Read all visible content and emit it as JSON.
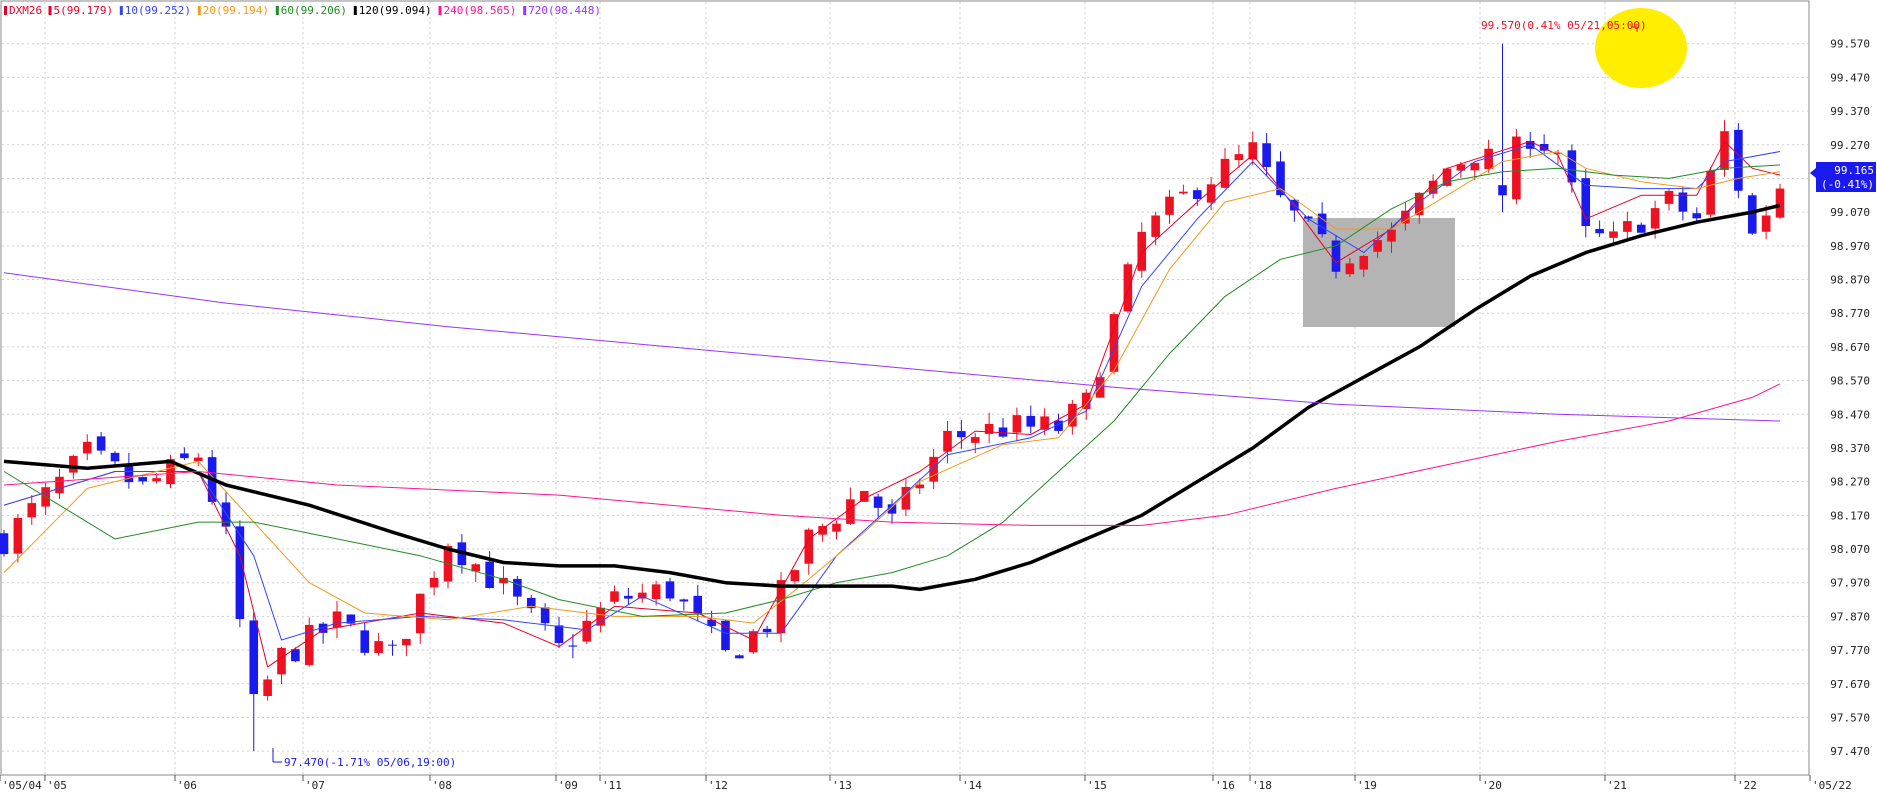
{
  "legend": [
    {
      "label": "DXM26",
      "color": "#e8002a"
    },
    {
      "label": "5(99.179)",
      "color": "#e8002a"
    },
    {
      "label": "10(99.252)",
      "color": "#3344ff"
    },
    {
      "label": "20(99.194)",
      "color": "#f29a1e"
    },
    {
      "label": "60(99.206)",
      "color": "#228b22"
    },
    {
      "label": "120(99.094)",
      "color": "#000000"
    },
    {
      "label": "240(98.565)",
      "color": "#ff1493"
    },
    {
      "label": "720(98.448)",
      "color": "#9933ff"
    }
  ],
  "annotations": {
    "high": "99.570(0.41% 05/21,05:00)",
    "low": "97.470(-1.71% 05/06,19:00)",
    "last_price": "99.165",
    "last_change": "(-0.41%)"
  },
  "colors": {
    "up": "#ee1122",
    "down": "#1a1aee",
    "grid": "#cfcfcf",
    "highlight_circle": "#ffee00",
    "highlight_box": "#b4b4b4",
    "price_tag": "#1a1aee"
  },
  "chart_data": {
    "type": "candlestick",
    "ylim": [
      97.42,
      99.67
    ],
    "yticks": [
      "99.570",
      "99.470",
      "99.370",
      "99.270",
      "99.170",
      "99.070",
      "98.970",
      "98.870",
      "98.770",
      "98.670",
      "98.570",
      "98.470",
      "98.370",
      "98.270",
      "98.170",
      "98.070",
      "97.970",
      "97.870",
      "97.770",
      "97.670",
      "97.570",
      "97.470"
    ],
    "xticks": [
      "05/04",
      "05",
      "06",
      "07",
      "08",
      "09",
      "11",
      "12",
      "13",
      "14",
      "15",
      "16",
      "18",
      "19",
      "20",
      "21",
      "22",
      "05/22"
    ],
    "price_path": [
      [
        0,
        98.1
      ],
      [
        6,
        98.35
      ],
      [
        10,
        98.25
      ],
      [
        14,
        98.35
      ],
      [
        16,
        98.1
      ],
      [
        18,
        97.6
      ],
      [
        20,
        97.75
      ],
      [
        24,
        97.85
      ],
      [
        28,
        97.75
      ],
      [
        32,
        98.1
      ],
      [
        36,
        97.95
      ],
      [
        40,
        97.77
      ],
      [
        44,
        97.92
      ],
      [
        48,
        97.95
      ],
      [
        52,
        97.75
      ],
      [
        55,
        97.85
      ],
      [
        58,
        98.1
      ],
      [
        62,
        98.25
      ],
      [
        64,
        98.15
      ],
      [
        68,
        98.4
      ],
      [
        72,
        98.43
      ],
      [
        76,
        98.43
      ],
      [
        78,
        98.5
      ],
      [
        82,
        99.0
      ],
      [
        86,
        99.15
      ],
      [
        88,
        99.2
      ],
      [
        90,
        99.25
      ],
      [
        92,
        99.1
      ],
      [
        96,
        98.92
      ],
      [
        98,
        98.98
      ],
      [
        100,
        99.0
      ],
      [
        104,
        99.2
      ],
      [
        106,
        99.25
      ],
      [
        108,
        99.2
      ],
      [
        110,
        99.3
      ],
      [
        112,
        99.25
      ],
      [
        114,
        99.0
      ],
      [
        116,
        98.98
      ],
      [
        118,
        99.05
      ],
      [
        120,
        99.1
      ],
      [
        122,
        99.05
      ],
      [
        124,
        99.3
      ],
      [
        126,
        99.0
      ],
      [
        128,
        99.15
      ]
    ],
    "moving_averages": [
      {
        "name": "5",
        "color": "#e8002a",
        "width": 1,
        "points": [
          [
            0,
            98.2
          ],
          [
            8,
            98.3
          ],
          [
            14,
            98.3
          ],
          [
            17,
            98.05
          ],
          [
            19,
            97.72
          ],
          [
            23,
            97.83
          ],
          [
            30,
            97.88
          ],
          [
            36,
            97.85
          ],
          [
            40,
            97.78
          ],
          [
            44,
            97.9
          ],
          [
            50,
            97.88
          ],
          [
            54,
            97.8
          ],
          [
            58,
            98.1
          ],
          [
            62,
            98.22
          ],
          [
            66,
            98.3
          ],
          [
            70,
            98.42
          ],
          [
            74,
            98.41
          ],
          [
            78,
            98.5
          ],
          [
            82,
            98.95
          ],
          [
            86,
            99.1
          ],
          [
            90,
            99.24
          ],
          [
            92,
            99.14
          ],
          [
            96,
            98.92
          ],
          [
            100,
            99.02
          ],
          [
            104,
            99.2
          ],
          [
            110,
            99.28
          ],
          [
            112,
            99.24
          ],
          [
            114,
            99.05
          ],
          [
            118,
            99.12
          ],
          [
            122,
            99.12
          ],
          [
            124,
            99.28
          ],
          [
            126,
            99.2
          ],
          [
            128,
            99.18
          ]
        ]
      },
      {
        "name": "10",
        "color": "#3344ff",
        "width": 1,
        "points": [
          [
            0,
            98.2
          ],
          [
            8,
            98.3
          ],
          [
            14,
            98.3
          ],
          [
            18,
            98.05
          ],
          [
            20,
            97.8
          ],
          [
            24,
            97.85
          ],
          [
            30,
            97.87
          ],
          [
            36,
            97.86
          ],
          [
            42,
            97.83
          ],
          [
            46,
            97.93
          ],
          [
            52,
            97.82
          ],
          [
            56,
            97.82
          ],
          [
            60,
            98.05
          ],
          [
            64,
            98.2
          ],
          [
            68,
            98.35
          ],
          [
            74,
            98.4
          ],
          [
            78,
            98.48
          ],
          [
            82,
            98.85
          ],
          [
            86,
            99.05
          ],
          [
            90,
            99.22
          ],
          [
            94,
            99.05
          ],
          [
            98,
            98.95
          ],
          [
            102,
            99.1
          ],
          [
            106,
            99.22
          ],
          [
            110,
            99.27
          ],
          [
            114,
            99.15
          ],
          [
            118,
            99.14
          ],
          [
            122,
            99.14
          ],
          [
            124,
            99.22
          ],
          [
            128,
            99.25
          ]
        ]
      },
      {
        "name": "20",
        "color": "#f29a1e",
        "width": 1,
        "points": [
          [
            0,
            98.0
          ],
          [
            6,
            98.25
          ],
          [
            14,
            98.33
          ],
          [
            18,
            98.15
          ],
          [
            22,
            97.97
          ],
          [
            26,
            97.88
          ],
          [
            32,
            97.86
          ],
          [
            38,
            97.9
          ],
          [
            44,
            97.87
          ],
          [
            50,
            97.87
          ],
          [
            54,
            97.85
          ],
          [
            58,
            97.98
          ],
          [
            62,
            98.12
          ],
          [
            66,
            98.27
          ],
          [
            72,
            98.38
          ],
          [
            76,
            98.4
          ],
          [
            80,
            98.6
          ],
          [
            84,
            98.9
          ],
          [
            88,
            99.1
          ],
          [
            92,
            99.14
          ],
          [
            96,
            99.02
          ],
          [
            100,
            99.02
          ],
          [
            104,
            99.12
          ],
          [
            108,
            99.22
          ],
          [
            112,
            99.25
          ],
          [
            114,
            99.2
          ],
          [
            118,
            99.16
          ],
          [
            122,
            99.14
          ],
          [
            125,
            99.17
          ],
          [
            128,
            99.19
          ]
        ]
      },
      {
        "name": "60",
        "color": "#228b22",
        "width": 1,
        "points": [
          [
            0,
            98.3
          ],
          [
            4,
            98.2
          ],
          [
            8,
            98.1
          ],
          [
            14,
            98.15
          ],
          [
            18,
            98.15
          ],
          [
            24,
            98.1
          ],
          [
            30,
            98.05
          ],
          [
            36,
            97.98
          ],
          [
            40,
            97.92
          ],
          [
            46,
            97.87
          ],
          [
            52,
            97.88
          ],
          [
            56,
            97.92
          ],
          [
            60,
            97.97
          ],
          [
            64,
            98.0
          ],
          [
            68,
            98.05
          ],
          [
            72,
            98.15
          ],
          [
            76,
            98.3
          ],
          [
            80,
            98.45
          ],
          [
            84,
            98.65
          ],
          [
            88,
            98.82
          ],
          [
            92,
            98.93
          ],
          [
            96,
            98.97
          ],
          [
            100,
            99.08
          ],
          [
            104,
            99.16
          ],
          [
            108,
            99.19
          ],
          [
            112,
            99.2
          ],
          [
            116,
            99.18
          ],
          [
            120,
            99.17
          ],
          [
            124,
            99.2
          ],
          [
            128,
            99.21
          ]
        ]
      },
      {
        "name": "120",
        "color": "#000000",
        "width": 3.5,
        "points": [
          [
            0,
            98.33
          ],
          [
            6,
            98.31
          ],
          [
            12,
            98.33
          ],
          [
            16,
            98.26
          ],
          [
            22,
            98.2
          ],
          [
            28,
            98.12
          ],
          [
            32,
            98.07
          ],
          [
            36,
            98.03
          ],
          [
            40,
            98.02
          ],
          [
            44,
            98.02
          ],
          [
            48,
            98.0
          ],
          [
            52,
            97.97
          ],
          [
            56,
            97.96
          ],
          [
            60,
            97.96
          ],
          [
            64,
            97.96
          ],
          [
            66,
            97.95
          ],
          [
            70,
            97.98
          ],
          [
            74,
            98.03
          ],
          [
            78,
            98.1
          ],
          [
            82,
            98.17
          ],
          [
            86,
            98.27
          ],
          [
            90,
            98.37
          ],
          [
            94,
            98.49
          ],
          [
            98,
            98.58
          ],
          [
            102,
            98.67
          ],
          [
            106,
            98.78
          ],
          [
            110,
            98.88
          ],
          [
            114,
            98.95
          ],
          [
            118,
            99.0
          ],
          [
            122,
            99.04
          ],
          [
            126,
            99.07
          ],
          [
            128,
            99.09
          ]
        ]
      },
      {
        "name": "240",
        "color": "#ff1493",
        "width": 1,
        "points": [
          [
            0,
            98.26
          ],
          [
            14,
            98.3
          ],
          [
            24,
            98.26
          ],
          [
            40,
            98.23
          ],
          [
            56,
            98.17
          ],
          [
            64,
            98.15
          ],
          [
            74,
            98.14
          ],
          [
            82,
            98.14
          ],
          [
            88,
            98.17
          ],
          [
            96,
            98.25
          ],
          [
            104,
            98.32
          ],
          [
            112,
            98.39
          ],
          [
            120,
            98.45
          ],
          [
            126,
            98.52
          ],
          [
            128,
            98.56
          ]
        ]
      },
      {
        "name": "720",
        "color": "#9933ff",
        "width": 1,
        "points": [
          [
            0,
            98.89
          ],
          [
            16,
            98.8
          ],
          [
            32,
            98.73
          ],
          [
            48,
            98.67
          ],
          [
            64,
            98.61
          ],
          [
            80,
            98.55
          ],
          [
            96,
            98.5
          ],
          [
            112,
            98.47
          ],
          [
            128,
            98.45
          ]
        ]
      }
    ]
  }
}
